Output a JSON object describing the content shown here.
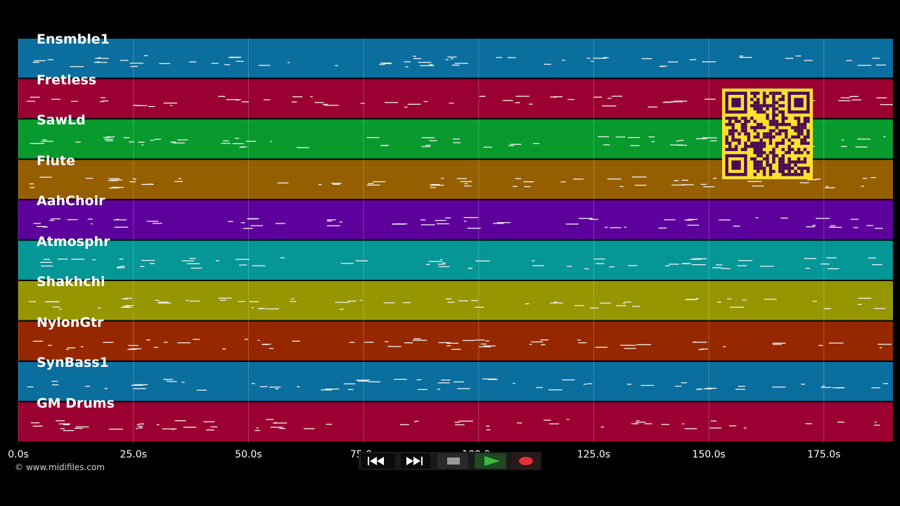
{
  "tracks": [
    {
      "name": "Ensmble1",
      "color": "#0a6e9e"
    },
    {
      "name": "Fretless",
      "color": "#9b0033"
    },
    {
      "name": "SawLd",
      "color": "#089a2d"
    },
    {
      "name": "Flute",
      "color": "#955f00"
    },
    {
      "name": "AahChoir",
      "color": "#5c019b"
    },
    {
      "name": "Atmosphr",
      "color": "#059696"
    },
    {
      "name": "Shakhchi",
      "color": "#969600"
    },
    {
      "name": "NylonGtr",
      "color": "#962800"
    },
    {
      "name": "SynBass1",
      "color": "#0a6e9e"
    },
    {
      "name": "GM Drums",
      "color": "#9b0033"
    }
  ],
  "timeline": {
    "tick_labels": [
      "0.0s",
      "25.0s",
      "50.0s",
      "75.0s",
      "100.0s",
      "125.0s",
      "150.0s",
      "175.0s"
    ],
    "tick_values": [
      0,
      25,
      50,
      75,
      100,
      125,
      150,
      175
    ],
    "duration_s": 190
  },
  "footer": {
    "copyright": "© www.midifiles.com"
  },
  "transport": {
    "rewind": "rewind-icon",
    "fast_forward": "fast-forward-icon",
    "stop": "stop-icon",
    "play": "play-icon",
    "record": "record-icon",
    "play_color": "#3fb93f",
    "record_color": "#e0303a"
  },
  "qr": {
    "fg": "#4a0a55",
    "bg": "#ffe12d"
  }
}
